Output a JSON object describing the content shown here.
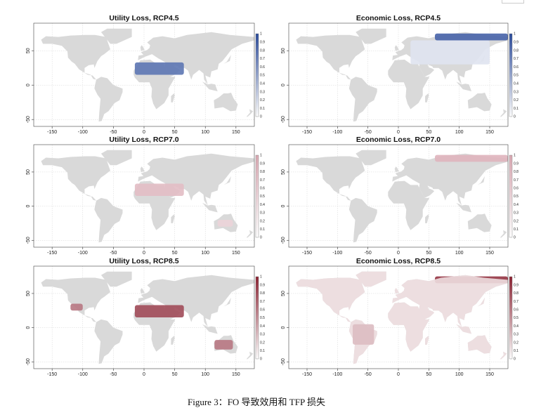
{
  "caption": "Figure 3：FO 导致效用和 TFP 损失",
  "chart_data": [
    {
      "type": "heatmap",
      "title": "Utility Loss, RCP4.5",
      "xlim": [
        -180,
        180
      ],
      "ylim": [
        -60,
        90
      ],
      "xticks": [
        "-150",
        "-100",
        "-50",
        "0",
        "50",
        "100",
        "150"
      ],
      "yticks": [
        "-50",
        "0",
        "50"
      ],
      "colorbar_ticks": [
        "0",
        "0.1",
        "0.2",
        "0.3",
        "0.4",
        "0.5",
        "0.6",
        "0.7",
        "0.8",
        "0.9",
        "1"
      ],
      "colorbar_range": [
        0,
        1
      ],
      "color_high": "#2b4b9b",
      "land_color": "#d9d9d9",
      "regions": [
        {
          "name": "N. Africa / Middle East",
          "lon": [
            -15,
            65
          ],
          "lat": [
            15,
            33
          ],
          "value": 0.75
        }
      ]
    },
    {
      "type": "heatmap",
      "title": "Economic Loss, RCP4.5",
      "xlim": [
        -180,
        180
      ],
      "ylim": [
        -60,
        90
      ],
      "xticks": [
        "-150",
        "-100",
        "-50",
        "0",
        "50",
        "100",
        "150"
      ],
      "yticks": [
        "-50",
        "0",
        "50"
      ],
      "colorbar_ticks": [
        "0",
        "0.1",
        "0.2",
        "0.3",
        "0.4",
        "0.5",
        "0.6",
        "0.7",
        "0.8",
        "0.9",
        "1"
      ],
      "colorbar_range": [
        0,
        1
      ],
      "color_high": "#2b4b9b",
      "land_color": "#d9d9d9",
      "regions": [
        {
          "name": "Arctic Siberia",
          "lon": [
            60,
            180
          ],
          "lat": [
            65,
            75
          ],
          "value": 0.85
        },
        {
          "name": "Eurasia",
          "lon": [
            20,
            150
          ],
          "lat": [
            30,
            65
          ],
          "value": 0.15
        }
      ]
    },
    {
      "type": "heatmap",
      "title": "Utility Loss, RCP7.0",
      "xlim": [
        -180,
        180
      ],
      "ylim": [
        -60,
        90
      ],
      "xticks": [
        "-150",
        "-100",
        "-50",
        "0",
        "50",
        "100",
        "150"
      ],
      "yticks": [
        "-50",
        "0",
        "50"
      ],
      "colorbar_ticks": [
        "0",
        "0.1",
        "0.2",
        "0.3",
        "0.4",
        "0.5",
        "0.6",
        "0.7",
        "0.8",
        "0.9",
        "1"
      ],
      "colorbar_range": [
        0,
        1
      ],
      "color_high": "#d9a8b2",
      "land_color": "#d9d9d9",
      "regions": [
        {
          "name": "N. Africa / Middle East",
          "lon": [
            -15,
            65
          ],
          "lat": [
            15,
            33
          ],
          "value": 0.75
        },
        {
          "name": "Australia",
          "lon": [
            120,
            145
          ],
          "lat": [
            -30,
            -20
          ],
          "value": 0.5
        }
      ]
    },
    {
      "type": "heatmap",
      "title": "Economic Loss, RCP7.0",
      "xlim": [
        -180,
        180
      ],
      "ylim": [
        -60,
        90
      ],
      "xticks": [
        "-150",
        "-100",
        "-50",
        "0",
        "50",
        "100",
        "150"
      ],
      "yticks": [
        "-50",
        "0",
        "50"
      ],
      "colorbar_ticks": [
        "0",
        "0.1",
        "0.2",
        "0.3",
        "0.4",
        "0.5",
        "0.6",
        "0.7",
        "0.8",
        "0.9",
        "1"
      ],
      "colorbar_range": [
        0,
        1
      ],
      "color_high": "#d9a8b2",
      "land_color": "#d9d9d9",
      "regions": [
        {
          "name": "Arctic Siberia",
          "lon": [
            60,
            180
          ],
          "lat": [
            65,
            75
          ],
          "value": 0.85
        }
      ]
    },
    {
      "type": "heatmap",
      "title": "Utility Loss, RCP8.5",
      "xlim": [
        -180,
        180
      ],
      "ylim": [
        -60,
        90
      ],
      "xticks": [
        "-150",
        "-100",
        "-50",
        "0",
        "50",
        "100",
        "150"
      ],
      "yticks": [
        "-50",
        "0",
        "50"
      ],
      "colorbar_ticks": [
        "0",
        "0.1",
        "0.2",
        "0.3",
        "0.4",
        "0.5",
        "0.6",
        "0.7",
        "0.8",
        "0.9",
        "1"
      ],
      "colorbar_range": [
        0,
        1
      ],
      "color_high": "#8b2232",
      "land_color": "#d9d9d9",
      "regions": [
        {
          "name": "N. Africa / Middle East",
          "lon": [
            -15,
            65
          ],
          "lat": [
            15,
            33
          ],
          "value": 0.8
        },
        {
          "name": "Australia",
          "lon": [
            115,
            145
          ],
          "lat": [
            -32,
            -18
          ],
          "value": 0.6
        },
        {
          "name": "SW United States",
          "lon": [
            -120,
            -100
          ],
          "lat": [
            25,
            35
          ],
          "value": 0.6
        }
      ]
    },
    {
      "type": "heatmap",
      "title": "Economic Loss, RCP8.5",
      "xlim": [
        -180,
        180
      ],
      "ylim": [
        -60,
        90
      ],
      "xticks": [
        "-150",
        "-100",
        "-50",
        "0",
        "50",
        "100",
        "150"
      ],
      "yticks": [
        "-50",
        "0",
        "50"
      ],
      "colorbar_ticks": [
        "0",
        "0.1",
        "0.2",
        "0.3",
        "0.4",
        "0.5",
        "0.6",
        "0.7",
        "0.8",
        "0.9",
        "1"
      ],
      "colorbar_range": [
        0,
        1
      ],
      "color_high": "#8b2232",
      "land_color": "#d9d9d9",
      "regions": [
        {
          "name": "Arctic Siberia",
          "lon": [
            60,
            180
          ],
          "lat": [
            65,
            75
          ],
          "value": 0.9
        },
        {
          "name": "Global land",
          "lon": [
            -180,
            180
          ],
          "lat": [
            -60,
            75
          ],
          "value": 0.15
        },
        {
          "name": "South America",
          "lon": [
            -75,
            -40
          ],
          "lat": [
            -25,
            5
          ],
          "value": 0.3
        }
      ]
    }
  ]
}
